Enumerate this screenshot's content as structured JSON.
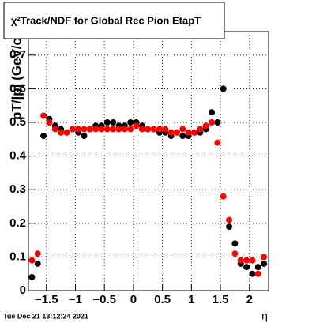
{
  "chart_data": {
    "type": "scatter",
    "title": "χ²Track/NDF for Global Rec Pion EtapT",
    "y_label": "pT/|p| (GeV/c",
    "x_label": "η",
    "timestamp": "Tue Dec 21 13:12:24 2021",
    "x": [
      -1.75,
      -1.65,
      -1.55,
      -1.45,
      -1.35,
      -1.25,
      -1.15,
      -1.05,
      -0.95,
      -0.85,
      -0.75,
      -0.65,
      -0.55,
      -0.45,
      -0.35,
      -0.25,
      -0.15,
      -0.05,
      0.05,
      0.15,
      0.25,
      0.35,
      0.45,
      0.55,
      0.65,
      0.75,
      0.85,
      0.95,
      1.05,
      1.15,
      1.25,
      1.35,
      1.45,
      1.55,
      1.65,
      1.75,
      1.85,
      1.95,
      2.05,
      2.15,
      2.25
    ],
    "series": [
      {
        "color": "#000000",
        "values": [
          0.04,
          0.08,
          0.46,
          0.51,
          0.49,
          0.48,
          0.47,
          0.48,
          0.47,
          0.46,
          0.48,
          0.49,
          0.49,
          0.5,
          0.5,
          0.49,
          0.49,
          0.5,
          0.5,
          0.49,
          0.48,
          0.48,
          0.47,
          0.47,
          0.46,
          0.47,
          0.46,
          0.46,
          0.47,
          0.47,
          0.48,
          0.53,
          0.5,
          0.6,
          0.19,
          0.14,
          0.08,
          0.07,
          0.05,
          0.07,
          0.08
        ]
      },
      {
        "color": "#ff0000",
        "values": [
          0.09,
          0.11,
          0.52,
          0.5,
          0.48,
          0.47,
          0.47,
          0.48,
          0.48,
          0.48,
          0.48,
          0.48,
          0.48,
          0.48,
          0.48,
          0.48,
          0.48,
          0.48,
          0.49,
          0.48,
          0.48,
          0.48,
          0.48,
          0.48,
          0.47,
          0.47,
          0.48,
          0.47,
          0.47,
          0.48,
          0.49,
          0.5,
          0.44,
          0.28,
          0.21,
          0.11,
          0.09,
          0.09,
          0.09,
          0.05,
          0.1
        ]
      }
    ],
    "xlim": [
      -1.81,
      2.33
    ],
    "ylim": [
      0,
      0.77
    ],
    "xticks": [
      {
        "value": -1.5,
        "label": "−1.5"
      },
      {
        "value": -1,
        "label": "−1"
      },
      {
        "value": -0.5,
        "label": "−0.5"
      },
      0,
      0.5,
      1,
      1.5,
      2
    ],
    "yticks": [
      0,
      0.1,
      0.2,
      0.3,
      0.4,
      0.5,
      0.6,
      0.7
    ],
    "grid": true
  }
}
